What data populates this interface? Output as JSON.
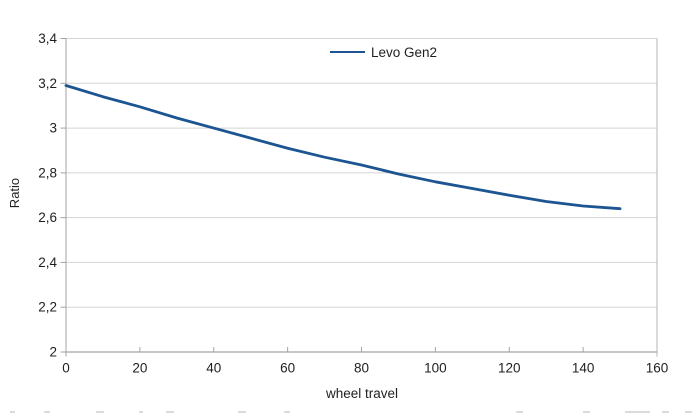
{
  "chart_data": {
    "type": "line",
    "title": "",
    "xlabel": "wheel travel",
    "ylabel": "Ratio",
    "xlim": [
      0,
      160
    ],
    "ylim": [
      2,
      3.4
    ],
    "x_ticks": [
      0,
      20,
      40,
      60,
      80,
      100,
      120,
      140,
      160
    ],
    "x_tick_labels": [
      "0",
      "20",
      "40",
      "60",
      "80",
      "100",
      "120",
      "140",
      "160"
    ],
    "y_ticks": [
      2,
      2.2,
      2.4,
      2.6,
      2.8,
      3,
      3.2,
      3.4
    ],
    "y_tick_labels": [
      "2",
      "2,2",
      "2,4",
      "2,6",
      "2,8",
      "3",
      "3,2",
      "3,4"
    ],
    "decimal_separator": ",",
    "grid": "horizontal",
    "legend_position": "top-center",
    "series": [
      {
        "name": "Levo Gen2",
        "color": "#1c5591",
        "x": [
          0,
          10,
          20,
          30,
          40,
          50,
          60,
          70,
          80,
          90,
          100,
          110,
          120,
          130,
          140,
          150
        ],
        "y": [
          3.19,
          3.14,
          3.095,
          3.045,
          3.0,
          2.955,
          2.91,
          2.87,
          2.835,
          2.795,
          2.76,
          2.73,
          2.7,
          2.672,
          2.652,
          2.64
        ]
      }
    ]
  },
  "colors": {
    "background": "#ffffff",
    "line": "#1c5591",
    "gridline": "#d4d4d4",
    "axis": "#a3a3a3",
    "plot_border_right": "#b5b5b5",
    "text": "#1f1f1f"
  }
}
